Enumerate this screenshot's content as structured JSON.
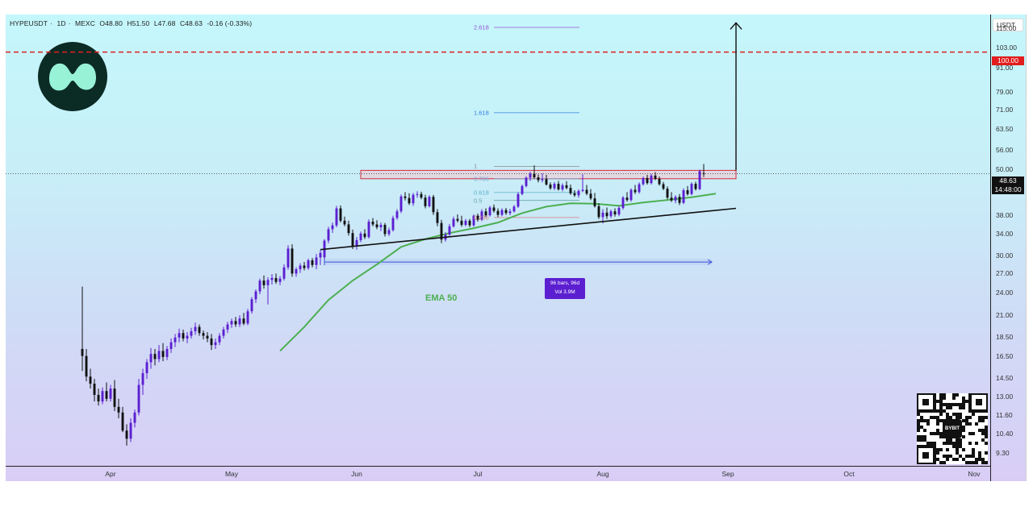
{
  "header": {
    "symbol": "HYPEUSDT",
    "interval": "1D",
    "exchange": "MEXC",
    "open": "O48.80",
    "high": "H51.50",
    "low": "L47.68",
    "close": "C48.63",
    "change": "-0.16 (-0.33%)"
  },
  "price_axis": {
    "currency": "USDT",
    "target_price": "100.00",
    "current_price": "48.63",
    "countdown": "14:48:00"
  },
  "annotations": {
    "ema_label": "EMA 50",
    "measure_bars": "96 bars, 96d",
    "measure_vol": "Vol 3.9M",
    "fib_levels": [
      {
        "label": "2.618",
        "price": 115.8
      },
      {
        "label": "1.618",
        "price": 69.8
      },
      {
        "label": "1",
        "price": 50.8
      },
      {
        "label": "0.786",
        "price": 47.2
      },
      {
        "label": "0.618",
        "price": 43.5
      },
      {
        "label": "0.5",
        "price": 41.5
      },
      {
        "label": "0.236",
        "price": 37.5
      }
    ],
    "qr_label": "BYBIT"
  },
  "colors": {
    "target_line": "#e21d1d",
    "ema": "#4caf50",
    "candle_up": "#5b1fd1",
    "candle_down": "#111111",
    "measure": "#3a50d9",
    "resistance_fill": "#f6c6cf",
    "resistance_border": "#d62b3a"
  },
  "chart_data": {
    "type": "candlestick",
    "scale": "log",
    "ylim": [
      8.6,
      125
    ],
    "y_ticks": [
      "115.00",
      "103.00",
      "91.00",
      "79.00",
      "71.00",
      "63.50",
      "56.00",
      "50.00",
      "44.00",
      "38.00",
      "34.00",
      "30.00",
      "27.00",
      "24.00",
      "21.00",
      "18.50",
      "16.50",
      "14.50",
      "13.00",
      "11.60",
      "10.40",
      "9.30"
    ],
    "x_ticks": [
      "Apr",
      "May",
      "Jun",
      "Jul",
      "Aug",
      "Sep",
      "Oct",
      "Nov"
    ],
    "x_tick_days": [
      0,
      30,
      61,
      91,
      122,
      153,
      183,
      214
    ],
    "xlim_days": [
      -26,
      218
    ],
    "target_price": 100.0,
    "current_price": 48.63,
    "resistance_zone": {
      "from_day": 62,
      "to_day": 155,
      "low": 47.2,
      "high": 49.6
    },
    "trendline": {
      "from": {
        "day": 52,
        "price": 31.0
      },
      "to": {
        "day": 155,
        "price": 39.6
      }
    },
    "breakout_arrow": {
      "day": 155,
      "from_price": 49.6,
      "to_price": 119.0
    },
    "measure_range": {
      "from_day": 53,
      "to_day": 149,
      "price": 28.8
    },
    "ema50": [
      {
        "day": 42,
        "price": 17.0
      },
      {
        "day": 48,
        "price": 19.6
      },
      {
        "day": 54,
        "price": 23.0
      },
      {
        "day": 60,
        "price": 25.8
      },
      {
        "day": 66,
        "price": 28.4
      },
      {
        "day": 72,
        "price": 31.5
      },
      {
        "day": 78,
        "price": 33.0
      },
      {
        "day": 84,
        "price": 34.2
      },
      {
        "day": 90,
        "price": 35.2
      },
      {
        "day": 96,
        "price": 36.4
      },
      {
        "day": 102,
        "price": 38.5
      },
      {
        "day": 108,
        "price": 40.0
      },
      {
        "day": 114,
        "price": 40.8
      },
      {
        "day": 120,
        "price": 40.7
      },
      {
        "day": 126,
        "price": 40.2
      },
      {
        "day": 132,
        "price": 41.0
      },
      {
        "day": 138,
        "price": 41.6
      },
      {
        "day": 144,
        "price": 42.3
      },
      {
        "day": 150,
        "price": 43.2
      }
    ],
    "candles": [
      [
        -7,
        17.2,
        24.9,
        15.1,
        16.5
      ],
      [
        -6,
        16.5,
        17.2,
        14.2,
        14.6
      ],
      [
        -5,
        14.6,
        15.3,
        13.6,
        14.0
      ],
      [
        -4,
        14.0,
        14.4,
        12.6,
        13.1
      ],
      [
        -3,
        13.1,
        13.6,
        12.3,
        12.6
      ],
      [
        -2,
        12.6,
        13.7,
        12.4,
        13.4
      ],
      [
        -1,
        13.4,
        14.1,
        12.6,
        12.8
      ],
      [
        0,
        12.8,
        13.9,
        12.6,
        13.6
      ],
      [
        1,
        13.6,
        14.3,
        11.9,
        12.2
      ],
      [
        2,
        12.2,
        12.8,
        11.4,
        11.8
      ],
      [
        3,
        11.8,
        12.2,
        10.5,
        10.6
      ],
      [
        4,
        10.6,
        11.0,
        9.7,
        10.1
      ],
      [
        5,
        10.1,
        11.4,
        9.9,
        11.1
      ],
      [
        6,
        11.1,
        12.0,
        10.8,
        11.8
      ],
      [
        7,
        11.8,
        14.4,
        11.6,
        13.9
      ],
      [
        8,
        13.9,
        15.3,
        13.1,
        14.9
      ],
      [
        9,
        14.9,
        16.2,
        14.4,
        15.9
      ],
      [
        10,
        15.9,
        17.3,
        15.3,
        16.7
      ],
      [
        11,
        16.7,
        17.2,
        15.6,
        16.2
      ],
      [
        12,
        16.2,
        17.6,
        15.9,
        17.0
      ],
      [
        13,
        17.0,
        17.8,
        16.0,
        16.4
      ],
      [
        14,
        16.4,
        17.5,
        16.1,
        17.2
      ],
      [
        15,
        17.2,
        18.3,
        16.8,
        17.9
      ],
      [
        16,
        17.9,
        18.8,
        17.4,
        18.4
      ],
      [
        17,
        18.4,
        19.4,
        17.9,
        18.9
      ],
      [
        18,
        18.9,
        19.3,
        18.0,
        18.3
      ],
      [
        19,
        18.3,
        19.0,
        17.8,
        18.6
      ],
      [
        20,
        18.6,
        19.5,
        18.3,
        19.1
      ],
      [
        21,
        19.1,
        20.1,
        18.7,
        19.6
      ],
      [
        22,
        19.6,
        19.9,
        18.6,
        18.9
      ],
      [
        23,
        18.9,
        19.2,
        18.2,
        18.6
      ],
      [
        24,
        18.6,
        19.0,
        17.9,
        18.3
      ],
      [
        25,
        18.3,
        18.8,
        17.1,
        17.6
      ],
      [
        26,
        17.6,
        18.3,
        17.2,
        17.9
      ],
      [
        27,
        17.9,
        18.9,
        17.6,
        18.6
      ],
      [
        28,
        18.6,
        19.6,
        18.3,
        19.3
      ],
      [
        29,
        19.3,
        20.2,
        18.9,
        19.9
      ],
      [
        30,
        19.9,
        20.6,
        19.5,
        20.3
      ],
      [
        31,
        20.3,
        20.8,
        19.6,
        19.9
      ],
      [
        32,
        19.9,
        21.0,
        19.6,
        20.6
      ],
      [
        33,
        20.6,
        21.3,
        19.8,
        20.0
      ],
      [
        34,
        20.0,
        21.8,
        19.8,
        21.5
      ],
      [
        35,
        21.5,
        23.4,
        21.2,
        23.1
      ],
      [
        36,
        23.1,
        24.5,
        22.6,
        24.2
      ],
      [
        37,
        24.2,
        26.1,
        23.8,
        25.8
      ],
      [
        38,
        25.8,
        26.6,
        24.6,
        25.1
      ],
      [
        39,
        25.1,
        26.3,
        22.4,
        25.9
      ],
      [
        40,
        25.9,
        26.8,
        25.2,
        26.2
      ],
      [
        41,
        26.2,
        26.9,
        25.3,
        25.6
      ],
      [
        42,
        25.6,
        26.5,
        25.1,
        26.1
      ],
      [
        43,
        26.1,
        28.4,
        25.8,
        27.9
      ],
      [
        44,
        27.9,
        31.8,
        27.5,
        31.2
      ],
      [
        45,
        31.2,
        32.0,
        26.4,
        26.9
      ],
      [
        46,
        26.9,
        27.9,
        26.4,
        27.6
      ],
      [
        47,
        27.6,
        28.6,
        27.0,
        28.2
      ],
      [
        48,
        28.2,
        28.8,
        27.4,
        27.8
      ],
      [
        49,
        27.8,
        29.4,
        27.5,
        29.1
      ],
      [
        50,
        29.1,
        29.5,
        27.9,
        28.3
      ],
      [
        51,
        28.3,
        30.2,
        27.6,
        29.6
      ],
      [
        52,
        29.6,
        30.9,
        28.3,
        30.4
      ],
      [
        53,
        29.6,
        33.0,
        29.3,
        32.7
      ],
      [
        54,
        32.7,
        35.5,
        32.2,
        35.0
      ],
      [
        55,
        35.0,
        36.4,
        34.2,
        35.8
      ],
      [
        56,
        35.8,
        40.2,
        35.4,
        39.6
      ],
      [
        57,
        39.6,
        40.3,
        36.4,
        36.8
      ],
      [
        58,
        36.8,
        37.7,
        35.6,
        36.0
      ],
      [
        59,
        36.0,
        36.8,
        33.7,
        34.2
      ],
      [
        60,
        34.2,
        34.9,
        31.1,
        31.6
      ],
      [
        61,
        31.6,
        33.4,
        31.0,
        32.8
      ],
      [
        62,
        32.8,
        34.5,
        32.4,
        34.1
      ],
      [
        63,
        34.1,
        35.0,
        33.0,
        33.4
      ],
      [
        64,
        33.4,
        37.1,
        33.1,
        36.6
      ],
      [
        65,
        36.6,
        37.4,
        35.6,
        36.0
      ],
      [
        66,
        36.0,
        36.9,
        35.0,
        35.4
      ],
      [
        67,
        35.4,
        36.4,
        34.6,
        35.9
      ],
      [
        68,
        35.9,
        36.3,
        33.5,
        34.0
      ],
      [
        69,
        34.0,
        35.3,
        33.6,
        34.8
      ],
      [
        70,
        34.8,
        37.9,
        34.5,
        37.4
      ],
      [
        71,
        37.4,
        39.4,
        37.0,
        38.9
      ],
      [
        72,
        38.9,
        43.0,
        38.5,
        42.5
      ],
      [
        73,
        42.5,
        43.6,
        41.5,
        42.1
      ],
      [
        74,
        42.1,
        43.3,
        40.4,
        40.8
      ],
      [
        75,
        40.8,
        43.4,
        40.2,
        42.9
      ],
      [
        76,
        42.9,
        43.8,
        42.2,
        43.1
      ],
      [
        77,
        43.1,
        43.7,
        41.8,
        42.2
      ],
      [
        78,
        42.2,
        42.9,
        39.6,
        40.1
      ],
      [
        79,
        40.1,
        42.8,
        39.8,
        42.4
      ],
      [
        80,
        42.4,
        42.9,
        38.1,
        38.7
      ],
      [
        81,
        38.7,
        39.4,
        35.6,
        36.3
      ],
      [
        82,
        36.3,
        37.0,
        32.2,
        32.9
      ],
      [
        83,
        32.9,
        34.4,
        32.5,
        33.9
      ],
      [
        84,
        33.9,
        36.1,
        33.6,
        35.6
      ],
      [
        85,
        35.6,
        37.7,
        35.3,
        37.2
      ],
      [
        86,
        37.2,
        38.2,
        36.4,
        36.8
      ],
      [
        87,
        36.8,
        37.9,
        35.5,
        35.9
      ],
      [
        88,
        35.9,
        37.2,
        35.6,
        36.8
      ],
      [
        89,
        36.8,
        37.2,
        35.4,
        35.8
      ],
      [
        90,
        35.8,
        38.2,
        35.5,
        37.9
      ],
      [
        91,
        37.9,
        38.4,
        36.6,
        37.0
      ],
      [
        92,
        37.0,
        39.4,
        36.7,
        38.9
      ],
      [
        93,
        38.9,
        39.6,
        37.6,
        38.0
      ],
      [
        94,
        38.0,
        40.2,
        37.7,
        39.8
      ],
      [
        95,
        39.8,
        40.5,
        38.6,
        39.0
      ],
      [
        96,
        39.0,
        39.6,
        37.6,
        38.1
      ],
      [
        97,
        38.1,
        39.6,
        37.8,
        39.2
      ],
      [
        98,
        39.2,
        39.7,
        38.1,
        38.5
      ],
      [
        99,
        38.5,
        39.5,
        38.0,
        38.9
      ],
      [
        100,
        38.9,
        40.4,
        38.6,
        40.0
      ],
      [
        101,
        40.0,
        43.6,
        39.7,
        43.1
      ],
      [
        102,
        43.1,
        45.6,
        42.8,
        45.2
      ],
      [
        103,
        45.2,
        47.9,
        44.8,
        47.5
      ],
      [
        104,
        47.5,
        49.2,
        46.6,
        48.6
      ],
      [
        105,
        48.6,
        51.1,
        47.2,
        47.6
      ],
      [
        106,
        47.6,
        48.4,
        46.2,
        46.8
      ],
      [
        107,
        46.8,
        48.7,
        46.2,
        47.1
      ],
      [
        108,
        47.1,
        48.3,
        45.3,
        45.6
      ],
      [
        109,
        45.6,
        46.2,
        44.2,
        44.6
      ],
      [
        110,
        44.6,
        46.3,
        44.1,
        45.8
      ],
      [
        111,
        45.8,
        46.6,
        44.0,
        44.3
      ],
      [
        112,
        44.3,
        45.9,
        43.8,
        45.4
      ],
      [
        113,
        45.4,
        46.5,
        44.3,
        44.7
      ],
      [
        114,
        44.7,
        45.6,
        42.9,
        43.3
      ],
      [
        115,
        43.3,
        44.1,
        42.4,
        42.8
      ],
      [
        116,
        42.8,
        44.3,
        42.2,
        43.9
      ],
      [
        117,
        43.9,
        48.5,
        43.6,
        44.2
      ],
      [
        118,
        44.2,
        45.5,
        42.8,
        43.2
      ],
      [
        119,
        43.2,
        44.4,
        41.6,
        42.0
      ],
      [
        120,
        42.0,
        43.4,
        39.8,
        40.1
      ],
      [
        121,
        40.1,
        40.8,
        37.2,
        37.6
      ],
      [
        122,
        37.6,
        39.4,
        36.2,
        38.6
      ],
      [
        123,
        38.6,
        39.8,
        37.2,
        37.8
      ],
      [
        124,
        37.8,
        39.3,
        37.4,
        38.9
      ],
      [
        125,
        38.9,
        39.6,
        37.7,
        38.2
      ],
      [
        126,
        38.2,
        40.2,
        37.8,
        39.7
      ],
      [
        127,
        39.7,
        42.6,
        39.3,
        42.2
      ],
      [
        128,
        42.2,
        43.6,
        41.2,
        41.6
      ],
      [
        129,
        41.6,
        44.6,
        41.2,
        44.2
      ],
      [
        130,
        44.2,
        45.5,
        43.1,
        43.6
      ],
      [
        131,
        43.6,
        46.2,
        43.2,
        45.7
      ],
      [
        132,
        45.7,
        47.8,
        45.3,
        47.4
      ],
      [
        133,
        47.4,
        48.3,
        45.6,
        46.0
      ],
      [
        134,
        46.0,
        48.6,
        45.6,
        48.1
      ],
      [
        135,
        48.1,
        49.1,
        46.8,
        47.2
      ],
      [
        136,
        47.2,
        47.8,
        45.3,
        45.7
      ],
      [
        137,
        45.7,
        46.3,
        44.1,
        44.5
      ],
      [
        138,
        44.5,
        45.1,
        41.8,
        42.2
      ],
      [
        139,
        42.2,
        43.6,
        41.1,
        41.5
      ],
      [
        140,
        41.5,
        42.8,
        40.8,
        42.4
      ],
      [
        141,
        42.4,
        43.1,
        40.4,
        40.9
      ],
      [
        142,
        40.9,
        44.6,
        40.6,
        44.1
      ],
      [
        143,
        44.1,
        45.2,
        42.7,
        43.1
      ],
      [
        144,
        43.1,
        46.2,
        42.8,
        45.8
      ],
      [
        145,
        45.8,
        46.4,
        44.0,
        44.4
      ],
      [
        146,
        44.4,
        49.8,
        44.1,
        49.4
      ],
      [
        147,
        48.8,
        51.5,
        47.7,
        48.6
      ]
    ]
  }
}
